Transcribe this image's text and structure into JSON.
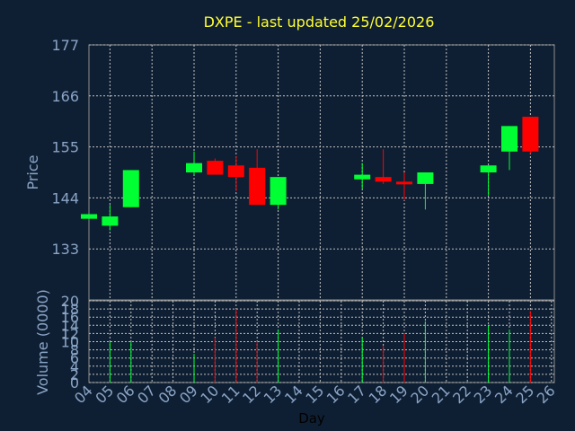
{
  "chart_data": {
    "type": "candlestick",
    "title": "DXPE - last updated 25/02/2026",
    "xlabel": "Day",
    "price_panel": {
      "ylabel": "Price",
      "ylim": [
        122,
        177
      ],
      "yticks": [
        "177",
        "166",
        "155",
        "144",
        "133"
      ],
      "grid": true
    },
    "volume_panel": {
      "ylabel": "Volume (0000)",
      "ylim": [
        0,
        20
      ],
      "yticks": [
        "20",
        "18",
        "16",
        "14",
        "12",
        "10",
        "8",
        "6",
        "4",
        "2",
        "0"
      ],
      "grid": true
    },
    "x_ticks": [
      "04",
      "05",
      "06",
      "07",
      "08",
      "09",
      "10",
      "11",
      "12",
      "13",
      "14",
      "15",
      "16",
      "17",
      "18",
      "19",
      "20",
      "21",
      "22",
      "23",
      "24",
      "25",
      "26"
    ],
    "candles": [
      {
        "day": "04",
        "open": 139.5,
        "close": 140.5,
        "high": 140.5,
        "low": 139.5,
        "volume": 0
      },
      {
        "day": "05",
        "open": 138.0,
        "close": 140.0,
        "high": 142.5,
        "low": 137.0,
        "volume": 10
      },
      {
        "day": "06",
        "open": 142.0,
        "close": 150.0,
        "high": 150.0,
        "low": 142.0,
        "volume": 10
      },
      {
        "day": "09",
        "open": 149.5,
        "close": 151.5,
        "high": 154.0,
        "low": 149.0,
        "volume": 7
      },
      {
        "day": "10",
        "open": 152.0,
        "close": 149.0,
        "high": 152.5,
        "low": 149.0,
        "volume": 11
      },
      {
        "day": "11",
        "open": 151.0,
        "close": 148.5,
        "high": 153.0,
        "low": 145.5,
        "volume": 18
      },
      {
        "day": "12",
        "open": 150.5,
        "close": 142.5,
        "high": 154.5,
        "low": 142.5,
        "volume": 10
      },
      {
        "day": "13",
        "open": 142.5,
        "close": 148.5,
        "high": 148.5,
        "low": 141.5,
        "volume": 13
      },
      {
        "day": "17",
        "open": 148.0,
        "close": 149.0,
        "high": 151.5,
        "low": 146.0,
        "volume": 11
      },
      {
        "day": "18",
        "open": 148.5,
        "close": 147.5,
        "high": 154.5,
        "low": 147.0,
        "volume": 9
      },
      {
        "day": "19",
        "open": 147.5,
        "close": 147.0,
        "high": 149.5,
        "low": 143.5,
        "volume": 12
      },
      {
        "day": "20",
        "open": 147.0,
        "close": 149.5,
        "high": 149.5,
        "low": 141.5,
        "volume": 15
      },
      {
        "day": "23",
        "open": 149.5,
        "close": 151.0,
        "high": 151.0,
        "low": 144.5,
        "volume": 14
      },
      {
        "day": "24",
        "open": 154.0,
        "close": 159.5,
        "high": 159.5,
        "low": 150.0,
        "volume": 13
      },
      {
        "day": "25",
        "open": 161.5,
        "close": 154.0,
        "high": 161.5,
        "low": 153.5,
        "volume": 17.5
      }
    ],
    "colors": {
      "background": "#0f1f33",
      "plot_background": "#0f1f33",
      "up": "#00ff33",
      "down": "#ff0000",
      "grid": "#c0c0c0",
      "axis_text": "#8aa5c6",
      "title_text": "#ffff33",
      "xlabel_text": "#000000"
    }
  }
}
